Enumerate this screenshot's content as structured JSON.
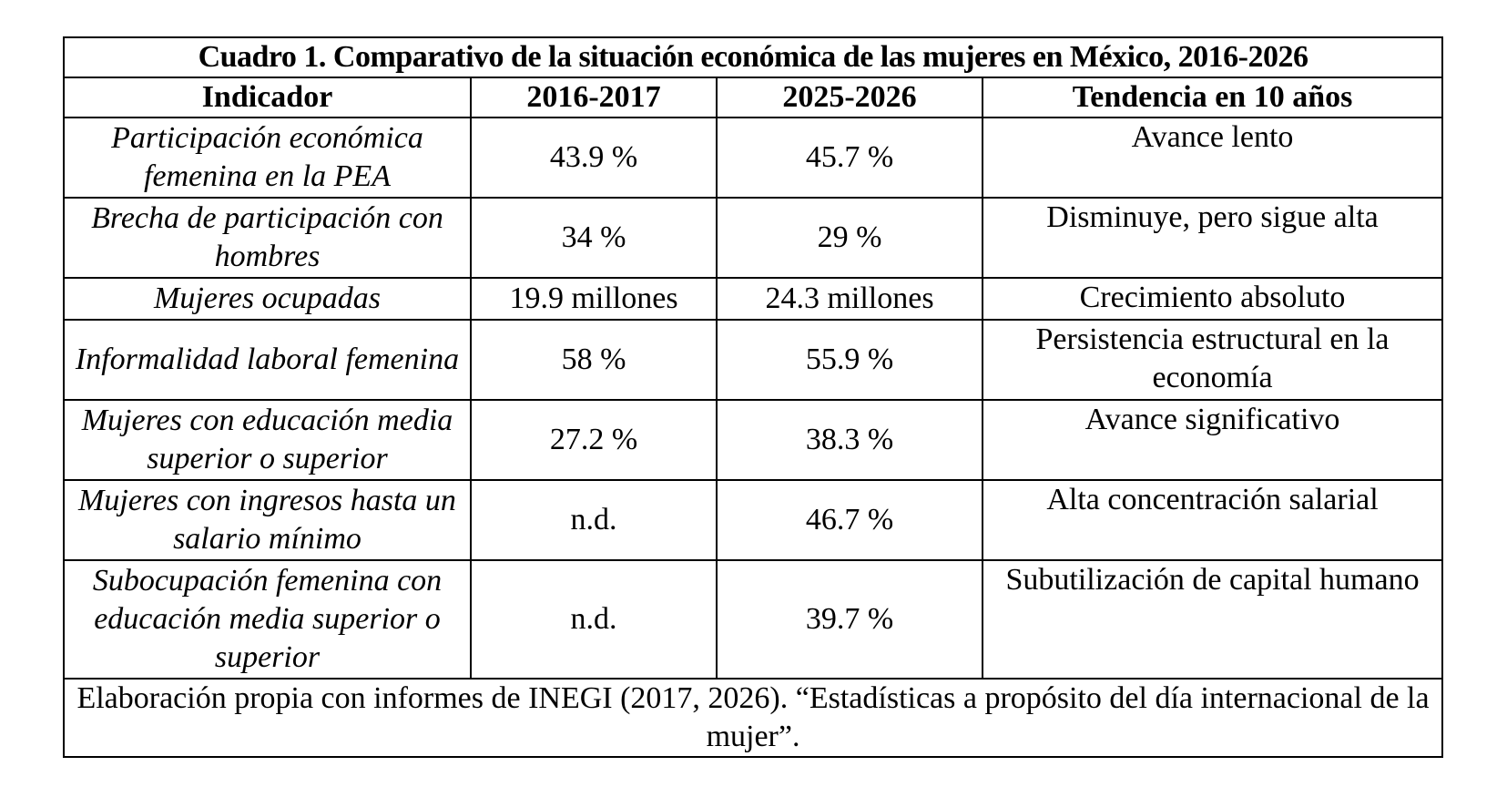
{
  "table": {
    "caption": "Cuadro 1. Comparativo de la situación económica de las mujeres en México, 2016-2026",
    "headers": [
      "Indicador",
      "2016-2017",
      "2025-2026",
      "Tendencia en 10 años"
    ],
    "rows": [
      {
        "indicator": "Participación económica femenina en la PEA",
        "v2016": "43.9 %",
        "v2025": "45.7 %",
        "trend": "Avance lento"
      },
      {
        "indicator": "Brecha de participación con hombres",
        "v2016": "34 %",
        "v2025": "29 %",
        "trend": "Disminuye, pero sigue alta"
      },
      {
        "indicator": "Mujeres ocupadas",
        "v2016": "19.9 millones",
        "v2025": "24.3 millones",
        "trend": "Crecimiento absoluto"
      },
      {
        "indicator": "Informalidad laboral femenina",
        "v2016": "58 %",
        "v2025": "55.9 %",
        "trend": "Persistencia estructural en la economía"
      },
      {
        "indicator": "Mujeres con educación media superior o superior",
        "v2016": "27.2 %",
        "v2025": "38.3 %",
        "trend": "Avance significativo"
      },
      {
        "indicator": "Mujeres con ingresos hasta un salario mínimo",
        "v2016": "n.d.",
        "v2025": "46.7 %",
        "trend": "Alta concentración salarial"
      },
      {
        "indicator": "Subocupación femenina con educación media superior o superior",
        "v2016": "n.d.",
        "v2025": "39.7 %",
        "trend": "Subutilización de capital humano"
      }
    ],
    "source": "Elaboración propia con informes de INEGI (2017, 2026). “Estadísticas a propósito del día internacional de la mujer”."
  }
}
